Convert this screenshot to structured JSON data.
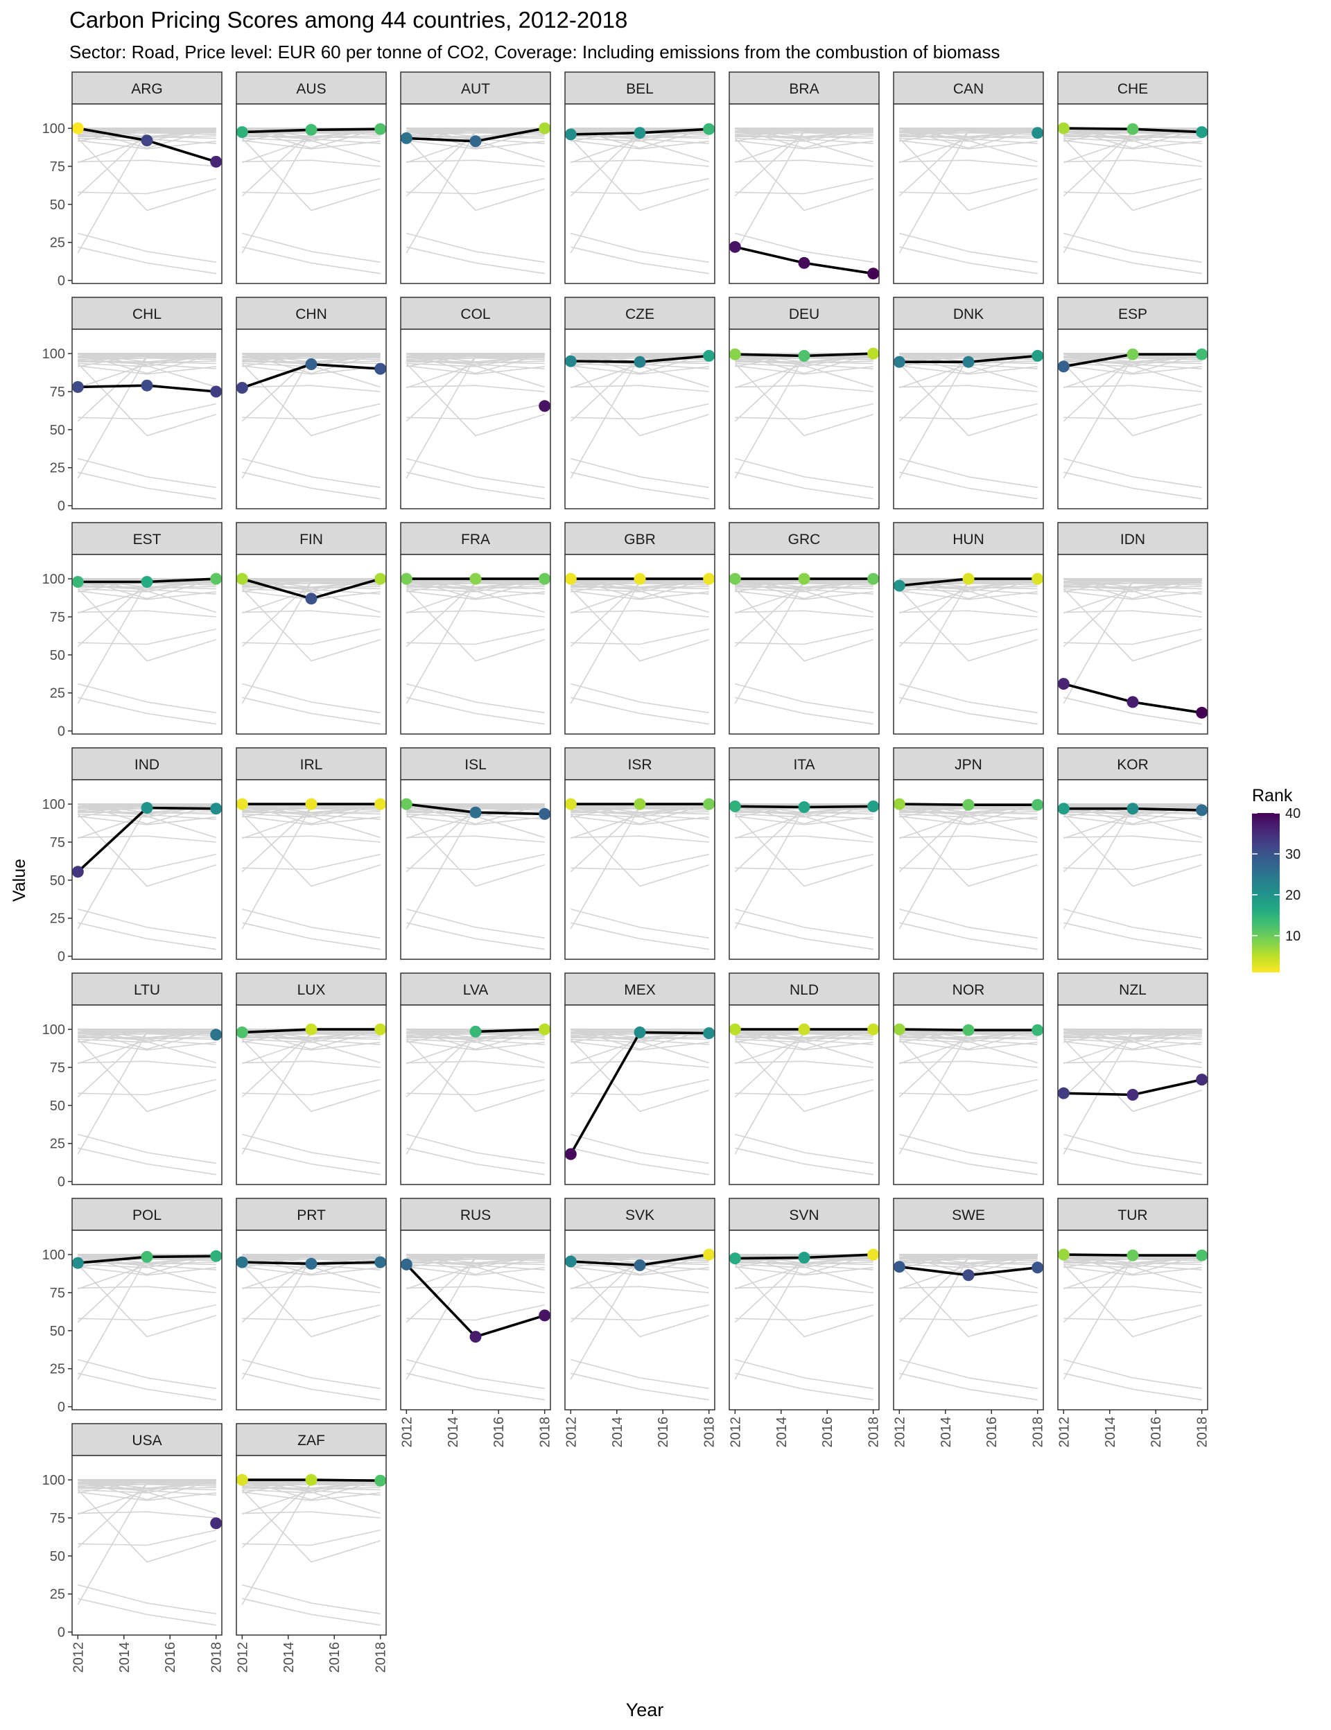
{
  "chart_data": {
    "type": "line",
    "title": "Carbon Pricing Scores among 44 countries, 2012-2018",
    "subtitle": "Sector: Road, Price level: EUR 60 per tonne of CO2, Coverage: Including emissions from the combustion of biomass",
    "xlabel": "Year",
    "ylabel": "Value",
    "x_ticks": [
      2012,
      2014,
      2016,
      2018
    ],
    "y_ticks": [
      0,
      25,
      50,
      75,
      100
    ],
    "xlim": [
      2011.75,
      2018.25
    ],
    "ylim": [
      -2,
      116
    ],
    "years": [
      2012,
      2015,
      2018
    ],
    "legend": {
      "title": "Rank",
      "ticks": [
        10,
        20,
        30,
        40
      ],
      "range": [
        1,
        40
      ],
      "position": "right",
      "colormap": "viridis-reversed"
    },
    "colors": {
      "highlight_line": "#000000",
      "background_lines": "#d3d3d3",
      "strip_fill": "#d9d9d9",
      "panel_border": "#333333"
    },
    "panels": [
      {
        "country": "ARG",
        "values": [
          100,
          92,
          78
        ],
        "ranks": [
          1,
          32,
          36
        ]
      },
      {
        "country": "AUS",
        "values": [
          97.5,
          99,
          99.5
        ],
        "ranks": [
          15,
          13,
          12
        ]
      },
      {
        "country": "AUT",
        "values": [
          93.5,
          91.5,
          100
        ],
        "ranks": [
          25,
          27,
          6
        ]
      },
      {
        "country": "BEL",
        "values": [
          96,
          97,
          99.5
        ],
        "ranks": [
          21,
          20,
          14
        ]
      },
      {
        "country": "BRA",
        "values": [
          22,
          11.5,
          4.5
        ],
        "ranks": [
          38,
          39,
          40
        ]
      },
      {
        "country": "CAN",
        "values": [
          null,
          null,
          97
        ],
        "ranks": [
          null,
          null,
          21
        ]
      },
      {
        "country": "CHE",
        "values": [
          100,
          99.5,
          97.5
        ],
        "ranks": [
          6,
          11,
          18
        ]
      },
      {
        "country": "CHL",
        "values": [
          78,
          79,
          75
        ],
        "ranks": [
          31,
          31,
          33
        ]
      },
      {
        "country": "CHN",
        "values": [
          77.5,
          93,
          90
        ],
        "ranks": [
          32,
          28,
          30
        ]
      },
      {
        "country": "COL",
        "values": [
          null,
          null,
          65.5
        ],
        "ranks": [
          null,
          null,
          38
        ]
      },
      {
        "country": "CZE",
        "values": [
          95,
          94.5,
          98.5
        ],
        "ranks": [
          22,
          23,
          17
        ]
      },
      {
        "country": "DEU",
        "values": [
          99.5,
          98.5,
          100
        ],
        "ranks": [
          8,
          12,
          5
        ]
      },
      {
        "country": "DNK",
        "values": [
          94.5,
          94.5,
          98.5
        ],
        "ranks": [
          24,
          24,
          18
        ]
      },
      {
        "country": "ESP",
        "values": [
          91.5,
          99.5,
          99.5
        ],
        "ranks": [
          28,
          9,
          13
        ]
      },
      {
        "country": "EST",
        "values": [
          98,
          98,
          100
        ],
        "ranks": [
          14,
          16,
          11
        ]
      },
      {
        "country": "FIN",
        "values": [
          100,
          87,
          100
        ],
        "ranks": [
          6,
          30,
          6
        ]
      },
      {
        "country": "FRA",
        "values": [
          100,
          100,
          100
        ],
        "ranks": [
          9,
          8,
          10
        ]
      },
      {
        "country": "GBR",
        "values": [
          100,
          100,
          100
        ],
        "ranks": [
          2,
          2,
          2
        ]
      },
      {
        "country": "GRC",
        "values": [
          100,
          100,
          100
        ],
        "ranks": [
          9,
          8,
          10
        ]
      },
      {
        "country": "HUN",
        "values": [
          95.5,
          100,
          100
        ],
        "ranks": [
          20,
          3,
          3
        ]
      },
      {
        "country": "IDN",
        "values": [
          31,
          19,
          12
        ],
        "ranks": [
          36,
          37,
          40
        ]
      },
      {
        "country": "IND",
        "values": [
          55.5,
          97.5,
          97
        ],
        "ranks": [
          34,
          20,
          21
        ]
      },
      {
        "country": "IRL",
        "values": [
          100,
          100,
          100
        ],
        "ranks": [
          2,
          2,
          2
        ]
      },
      {
        "country": "ISL",
        "values": [
          100,
          94.5,
          93.5
        ],
        "ranks": [
          10,
          26,
          28
        ]
      },
      {
        "country": "ISR",
        "values": [
          100,
          100,
          100
        ],
        "ranks": [
          3,
          7,
          9
        ]
      },
      {
        "country": "ITA",
        "values": [
          98.5,
          98,
          98.5
        ],
        "ranks": [
          15,
          17,
          18
        ]
      },
      {
        "country": "JPN",
        "values": [
          100,
          99.5,
          99.5
        ],
        "ranks": [
          7,
          10,
          12
        ]
      },
      {
        "country": "KOR",
        "values": [
          97,
          97,
          96
        ],
        "ranks": [
          18,
          21,
          26
        ]
      },
      {
        "country": "LTU",
        "values": [
          null,
          null,
          96.5
        ],
        "ranks": [
          null,
          null,
          25
        ]
      },
      {
        "country": "LUX",
        "values": [
          98,
          100,
          100
        ],
        "ranks": [
          12,
          4,
          4
        ]
      },
      {
        "country": "LVA",
        "values": [
          null,
          98.5,
          100
        ],
        "ranks": [
          null,
          14,
          5
        ]
      },
      {
        "country": "MEX",
        "values": [
          18,
          98,
          97.5
        ],
        "ranks": [
          39,
          21,
          21
        ]
      },
      {
        "country": "NLD",
        "values": [
          100,
          100,
          100
        ],
        "ranks": [
          5,
          4,
          4
        ]
      },
      {
        "country": "NOR",
        "values": [
          100,
          99.5,
          99.5
        ],
        "ranks": [
          7,
          12,
          14
        ]
      },
      {
        "country": "NZL",
        "values": [
          58,
          57,
          67
        ],
        "ranks": [
          33,
          35,
          35
        ]
      },
      {
        "country": "POL",
        "values": [
          94.5,
          98.5,
          99
        ],
        "ranks": [
          21,
          13,
          15
        ]
      },
      {
        "country": "PRT",
        "values": [
          95,
          94,
          95
        ],
        "ranks": [
          25,
          26,
          26
        ]
      },
      {
        "country": "RUS",
        "values": [
          93.5,
          46,
          60
        ],
        "ranks": [
          27,
          37,
          38
        ]
      },
      {
        "country": "SVK",
        "values": [
          95.5,
          93,
          100
        ],
        "ranks": [
          22,
          27,
          2
        ]
      },
      {
        "country": "SVN",
        "values": [
          97.5,
          98,
          100
        ],
        "ranks": [
          16,
          18,
          2
        ]
      },
      {
        "country": "SWE",
        "values": [
          92,
          86.5,
          91.5
        ],
        "ranks": [
          29,
          31,
          30
        ]
      },
      {
        "country": "TUR",
        "values": [
          100,
          99.5,
          99.5
        ],
        "ranks": [
          7,
          10,
          12
        ]
      },
      {
        "country": "USA",
        "values": [
          null,
          null,
          71.5
        ],
        "ranks": [
          null,
          null,
          35
        ]
      },
      {
        "country": "ZAF",
        "values": [
          100,
          100,
          99.5
        ],
        "ranks": [
          3,
          5,
          12
        ]
      }
    ]
  }
}
